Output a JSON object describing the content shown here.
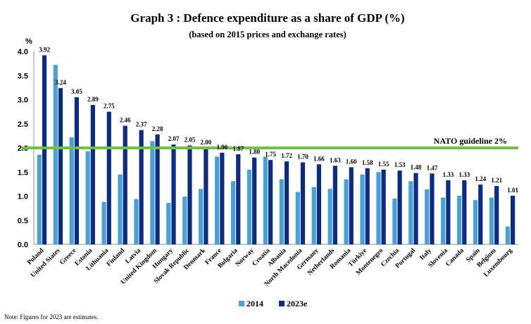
{
  "chart_data": {
    "type": "bar",
    "title": "Graph 3 : Defence expenditure as a share of GDP (%)",
    "subtitle": "(based on 2015 prices and exchange rates)",
    "ylabel": "%",
    "ylim": [
      0,
      4.0
    ],
    "yticks": [
      "0.0",
      "0.5",
      "1.0",
      "1.5",
      "2.0",
      "2.5",
      "3.0",
      "3.5",
      "4.0"
    ],
    "categories": [
      "Poland",
      "United States",
      "Greece",
      "Estonia",
      "Lithuania",
      "Finland",
      "Latvia",
      "United Kingdom",
      "Hungary",
      "Slovak Republic",
      "Denmark",
      "France",
      "Bulgaria",
      "Norway",
      "Croatia",
      "Albania",
      "North Macedonia",
      "Germany",
      "Netherlands",
      "Romania",
      "Türkiye",
      "Montenegro",
      "Czechia",
      "Portugal",
      "Italy",
      "Slovenia",
      "Canada",
      "Spain",
      "Belgium",
      "Luxembourg"
    ],
    "series": [
      {
        "name": "2014",
        "color": "#4a9fd4",
        "values": [
          1.86,
          3.72,
          2.22,
          1.93,
          0.88,
          1.45,
          0.94,
          2.14,
          0.86,
          0.99,
          1.15,
          1.82,
          1.31,
          1.55,
          1.82,
          1.35,
          1.09,
          1.19,
          1.15,
          1.35,
          1.45,
          1.5,
          0.95,
          1.31,
          1.14,
          0.97,
          1.01,
          0.92,
          0.97,
          0.37
        ]
      },
      {
        "name": "2023e",
        "color": "#0b2c80",
        "values": [
          3.92,
          3.24,
          3.05,
          2.89,
          2.75,
          2.46,
          2.37,
          2.28,
          2.07,
          2.05,
          2.0,
          1.9,
          1.87,
          1.8,
          1.75,
          1.72,
          1.7,
          1.66,
          1.63,
          1.6,
          1.58,
          1.55,
          1.53,
          1.48,
          1.47,
          1.33,
          1.33,
          1.24,
          1.21,
          1.01
        ]
      }
    ],
    "data_labels": [
      "3.92",
      "3.24",
      "3.05",
      "2.89",
      "2.75",
      "2.46",
      "2.37",
      "2.28",
      "2.07",
      "2.05",
      "2.00",
      "1.90",
      "1.87",
      "1.80",
      "1.75",
      "1.72",
      "1.70",
      "1.66",
      "1.63",
      "1.60",
      "1.58",
      "1.55",
      "1.53",
      "1.48",
      "1.47",
      "1.33",
      "1.33",
      "1.24",
      "1.21",
      "1.01"
    ],
    "guideline": {
      "value": 2.0,
      "label": "NATO guideline 2%",
      "color": "#6fc13f"
    },
    "grid": false,
    "legend": {
      "placement": "bottom-center"
    }
  },
  "note": "Note: Figures for 2023 are estimates."
}
